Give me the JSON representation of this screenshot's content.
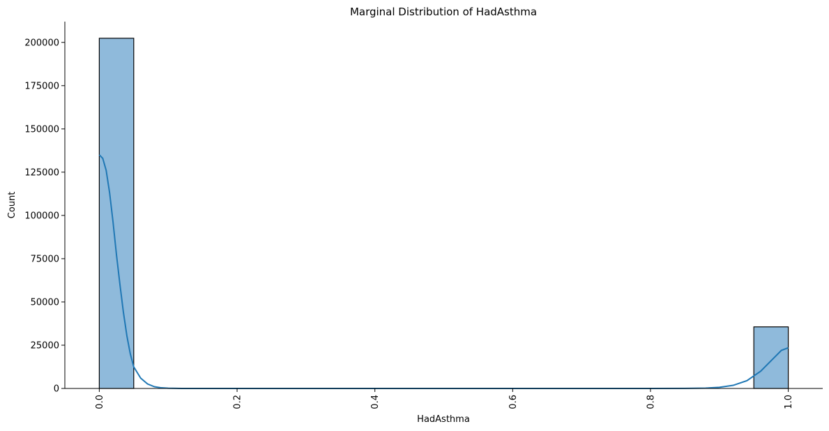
{
  "chart_data": {
    "type": "bar",
    "title": "Marginal Distribution of HadAsthma",
    "xlabel": "HadAsthma",
    "ylabel": "Count",
    "xlim": [
      -0.05,
      1.05
    ],
    "ylim": [
      0,
      212000
    ],
    "x_ticks": [
      0.0,
      0.2,
      0.4,
      0.6,
      0.8,
      1.0
    ],
    "x_tick_labels": [
      "0.0",
      "0.2",
      "0.4",
      "0.6",
      "0.8",
      "1.0"
    ],
    "y_ticks": [
      0,
      25000,
      50000,
      75000,
      100000,
      125000,
      150000,
      175000,
      200000
    ],
    "y_tick_labels": [
      "0",
      "25000",
      "50000",
      "75000",
      "100000",
      "125000",
      "150000",
      "175000",
      "200000"
    ],
    "bins": [
      {
        "x_start": 0.0,
        "x_end": 0.05,
        "count": 202400
      },
      {
        "x_start": 0.95,
        "x_end": 1.0,
        "count": 35600
      }
    ],
    "kde": {
      "x": [
        0.0,
        0.005,
        0.01,
        0.015,
        0.02,
        0.025,
        0.03,
        0.035,
        0.04,
        0.045,
        0.05,
        0.06,
        0.07,
        0.08,
        0.09,
        0.1,
        0.12,
        0.15,
        0.2,
        0.3,
        0.5,
        0.7,
        0.8,
        0.85,
        0.88,
        0.9,
        0.92,
        0.94,
        0.96,
        0.98,
        0.99,
        1.0
      ],
      "y": [
        135000,
        133000,
        126000,
        113000,
        96000,
        77000,
        60000,
        44000,
        30500,
        20000,
        12500,
        6000,
        2600,
        1000,
        380,
        130,
        20,
        0,
        0,
        0,
        0,
        0,
        0,
        40,
        200,
        650,
        1800,
        4500,
        10000,
        18000,
        22000,
        23500
      ]
    },
    "grid": false,
    "legend": "none",
    "colors": {
      "bar_fill": "#8fbadb",
      "bar_edge": "#000000",
      "kde_line": "#1f77b4"
    }
  }
}
